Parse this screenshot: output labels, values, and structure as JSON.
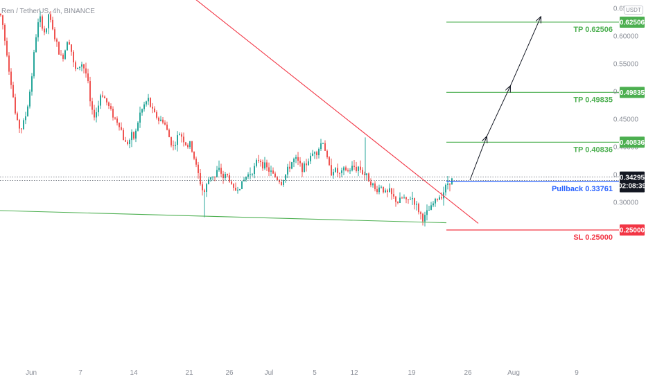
{
  "header": {
    "symbol": "Ren / TetherUS, 4h, BINANCE",
    "currency": "USDT"
  },
  "colors": {
    "up": "#26a69a",
    "down": "#ef5350",
    "green_line": "#4caf50",
    "red_line": "#f23645",
    "blue_line": "#2962ff",
    "dark_badge": "#131722",
    "arrow": "#131722"
  },
  "chart_data": {
    "type": "candlestick",
    "price_axis": {
      "ticks": [
        "0.65000",
        "0.60000",
        "0.55000",
        "0.50000",
        "0.45000",
        "0.40000",
        "0.35000",
        "0.30000"
      ]
    },
    "time_axis": {
      "ticks": [
        "Jun",
        "7",
        "14",
        "21",
        "26",
        "Jul",
        "5",
        "12",
        "19",
        "26",
        "Aug",
        "9"
      ]
    },
    "levels": [
      {
        "label": "TP 0.62506",
        "value": 0.62506,
        "badge": "0.62506"
      },
      {
        "label": "TP 0.49835",
        "value": 0.49835,
        "badge": "0.49835"
      },
      {
        "label": "TP 0.40836",
        "value": 0.40836,
        "badge": "0.40836"
      },
      {
        "label": "Pullback 0.33761",
        "value": 0.33761,
        "badge": "0.33761"
      },
      {
        "label": "SL 0.25000",
        "value": 0.25,
        "badge": "0.25000"
      }
    ],
    "current_price": {
      "value": 0.34295,
      "label": "0.34295",
      "countdown": "02:08:39"
    },
    "path": [
      [
        0,
        0.64
      ],
      [
        3,
        0.63
      ],
      [
        6,
        0.6
      ],
      [
        10,
        0.57
      ],
      [
        14,
        0.53
      ],
      [
        18,
        0.5
      ],
      [
        22,
        0.46
      ],
      [
        26,
        0.44
      ],
      [
        30,
        0.43
      ],
      [
        34,
        0.445
      ],
      [
        38,
        0.46
      ],
      [
        42,
        0.49
      ],
      [
        46,
        0.53
      ],
      [
        50,
        0.58
      ],
      [
        54,
        0.62
      ],
      [
        58,
        0.63
      ],
      [
        62,
        0.615
      ],
      [
        66,
        0.6
      ],
      [
        70,
        0.64
      ],
      [
        74,
        0.62
      ],
      [
        78,
        0.6
      ],
      [
        82,
        0.585
      ],
      [
        86,
        0.565
      ],
      [
        90,
        0.56
      ],
      [
        94,
        0.575
      ],
      [
        98,
        0.6
      ],
      [
        102,
        0.58
      ],
      [
        106,
        0.55
      ],
      [
        110,
        0.535
      ],
      [
        114,
        0.545
      ],
      [
        118,
        0.55
      ],
      [
        122,
        0.54
      ],
      [
        126,
        0.525
      ],
      [
        130,
        0.48
      ],
      [
        134,
        0.455
      ],
      [
        138,
        0.46
      ],
      [
        142,
        0.475
      ],
      [
        146,
        0.5
      ],
      [
        150,
        0.49
      ],
      [
        154,
        0.48
      ],
      [
        158,
        0.47
      ],
      [
        162,
        0.46
      ],
      [
        166,
        0.45
      ],
      [
        170,
        0.445
      ],
      [
        174,
        0.435
      ],
      [
        178,
        0.415
      ],
      [
        182,
        0.405
      ],
      [
        186,
        0.41
      ],
      [
        190,
        0.42
      ],
      [
        194,
        0.415
      ],
      [
        198,
        0.44
      ],
      [
        202,
        0.46
      ],
      [
        206,
        0.47
      ],
      [
        210,
        0.48
      ],
      [
        214,
        0.485
      ],
      [
        218,
        0.47
      ],
      [
        222,
        0.46
      ],
      [
        226,
        0.455
      ],
      [
        230,
        0.445
      ],
      [
        234,
        0.45
      ],
      [
        238,
        0.44
      ],
      [
        242,
        0.425
      ],
      [
        246,
        0.41
      ],
      [
        250,
        0.4
      ],
      [
        254,
        0.41
      ],
      [
        258,
        0.425
      ],
      [
        262,
        0.42
      ],
      [
        266,
        0.41
      ],
      [
        270,
        0.4
      ],
      [
        274,
        0.405
      ],
      [
        278,
        0.39
      ],
      [
        282,
        0.37
      ],
      [
        286,
        0.35
      ],
      [
        290,
        0.33
      ],
      [
        294,
        0.315
      ],
      [
        298,
        0.33
      ],
      [
        302,
        0.345
      ],
      [
        306,
        0.35
      ],
      [
        310,
        0.345
      ],
      [
        314,
        0.36
      ],
      [
        318,
        0.355
      ],
      [
        322,
        0.345
      ],
      [
        326,
        0.35
      ],
      [
        330,
        0.345
      ],
      [
        334,
        0.33
      ],
      [
        338,
        0.32
      ],
      [
        342,
        0.325
      ],
      [
        346,
        0.33
      ],
      [
        350,
        0.335
      ],
      [
        354,
        0.345
      ],
      [
        358,
        0.35
      ],
      [
        362,
        0.355
      ],
      [
        366,
        0.36
      ],
      [
        370,
        0.37
      ],
      [
        374,
        0.38
      ],
      [
        378,
        0.37
      ],
      [
        382,
        0.365
      ],
      [
        386,
        0.36
      ],
      [
        390,
        0.355
      ],
      [
        394,
        0.35
      ],
      [
        398,
        0.345
      ],
      [
        402,
        0.34
      ],
      [
        406,
        0.335
      ],
      [
        410,
        0.345
      ],
      [
        414,
        0.355
      ],
      [
        418,
        0.365
      ],
      [
        422,
        0.375
      ],
      [
        426,
        0.378
      ],
      [
        430,
        0.372
      ],
      [
        434,
        0.365
      ],
      [
        438,
        0.36
      ],
      [
        442,
        0.37
      ],
      [
        446,
        0.378
      ],
      [
        450,
        0.385
      ],
      [
        454,
        0.395
      ],
      [
        458,
        0.39
      ],
      [
        462,
        0.405
      ],
      [
        466,
        0.41
      ],
      [
        470,
        0.39
      ],
      [
        474,
        0.365
      ],
      [
        478,
        0.355
      ],
      [
        482,
        0.36
      ],
      [
        486,
        0.355
      ],
      [
        490,
        0.35
      ],
      [
        494,
        0.355
      ],
      [
        498,
        0.36
      ],
      [
        502,
        0.355
      ],
      [
        506,
        0.36
      ],
      [
        510,
        0.365
      ],
      [
        514,
        0.36
      ],
      [
        518,
        0.365
      ],
      [
        522,
        0.355
      ],
      [
        526,
        0.35
      ],
      [
        530,
        0.345
      ],
      [
        534,
        0.34
      ],
      [
        538,
        0.33
      ],
      [
        542,
        0.32
      ],
      [
        546,
        0.325
      ],
      [
        550,
        0.33
      ],
      [
        554,
        0.32
      ],
      [
        558,
        0.315
      ],
      [
        562,
        0.32
      ],
      [
        566,
        0.31
      ],
      [
        570,
        0.305
      ],
      [
        574,
        0.3
      ],
      [
        578,
        0.305
      ],
      [
        582,
        0.31
      ],
      [
        586,
        0.3
      ],
      [
        590,
        0.305
      ],
      [
        594,
        0.31
      ],
      [
        598,
        0.3
      ],
      [
        602,
        0.29
      ],
      [
        606,
        0.28
      ],
      [
        610,
        0.27
      ],
      [
        614,
        0.275
      ],
      [
        618,
        0.285
      ],
      [
        622,
        0.29
      ],
      [
        626,
        0.3
      ],
      [
        630,
        0.305
      ],
      [
        634,
        0.31
      ],
      [
        638,
        0.315
      ],
      [
        642,
        0.325
      ],
      [
        646,
        0.335
      ],
      [
        650,
        0.34
      ],
      [
        654,
        0.342
      ]
    ],
    "wicks": [
      {
        "x": 295,
        "low": 0.273
      },
      {
        "x": 527,
        "high": 0.417
      }
    ],
    "trendlines": [
      {
        "name": "descending-resistance",
        "color": "red",
        "from": [
          248,
          0.7
        ],
        "to": [
          690,
          0.262
        ]
      },
      {
        "name": "ascending-support",
        "color": "green",
        "from": [
          0,
          0.285
        ],
        "to": [
          644,
          0.263
        ]
      }
    ],
    "projection": [
      [
        678,
        0.34
      ],
      [
        702,
        0.408
      ],
      [
        736,
        0.499
      ],
      [
        780,
        0.624
      ]
    ]
  }
}
